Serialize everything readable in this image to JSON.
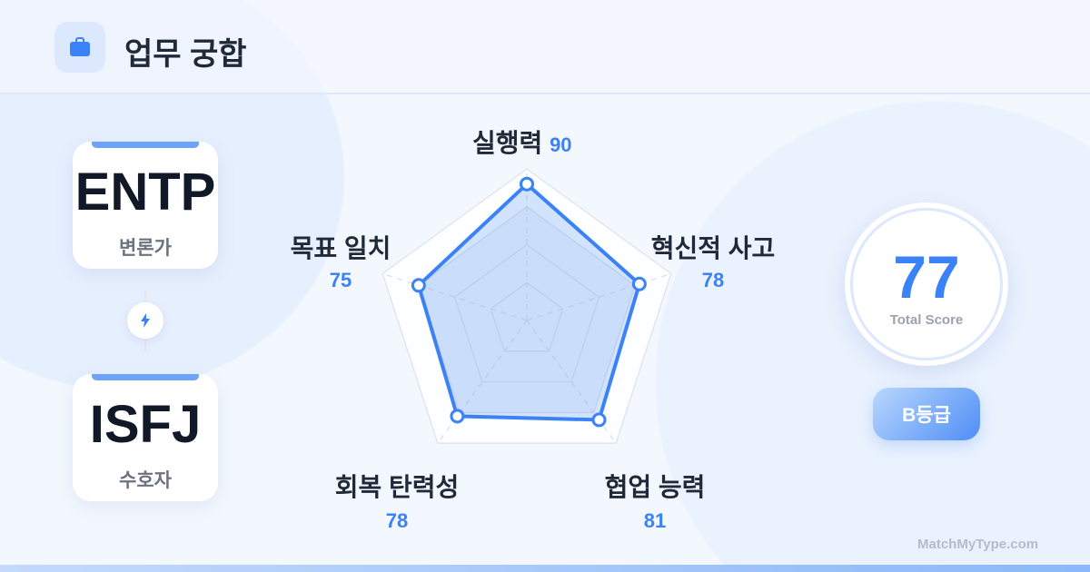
{
  "header": {
    "title": "업무 궁합",
    "icon": "briefcase-icon"
  },
  "types": [
    {
      "code": "ENTP",
      "nickname": "변론가"
    },
    {
      "code": "ISFJ",
      "nickname": "수호자"
    }
  ],
  "connector_icon": "lightning-icon",
  "chart_data": {
    "type": "radar",
    "categories": [
      "실행력",
      "혁신적 사고",
      "협업 능력",
      "회복 탄력성",
      "목표 일치"
    ],
    "values": [
      90,
      78,
      81,
      78,
      75
    ],
    "range": [
      0,
      100
    ],
    "grid_levels": [
      25,
      50,
      75,
      100
    ],
    "color": "#3b82f6"
  },
  "score": {
    "value": "77",
    "label": "Total Score"
  },
  "grade": "B등급",
  "site": "MatchMyType.com"
}
